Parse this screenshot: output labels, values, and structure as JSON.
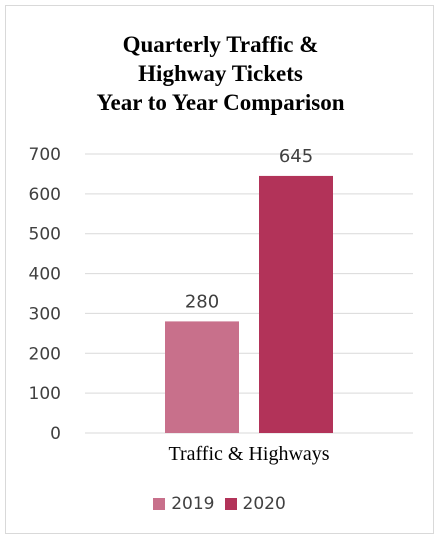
{
  "chart_data": {
    "type": "bar",
    "title_lines": [
      "Quarterly Traffic &",
      "Highway Tickets",
      "Year to Year Comparison"
    ],
    "categories": [
      "Traffic & Highways"
    ],
    "series": [
      {
        "name": "2019",
        "values": [
          280
        ],
        "color": "#c8708b"
      },
      {
        "name": "2020",
        "values": [
          645
        ],
        "color": "#b23359"
      }
    ],
    "ylim": [
      0,
      700
    ],
    "yticks": [
      "0",
      "100",
      "200",
      "300",
      "400",
      "500",
      "600",
      "700"
    ],
    "grid": true,
    "legend_position": "bottom"
  }
}
